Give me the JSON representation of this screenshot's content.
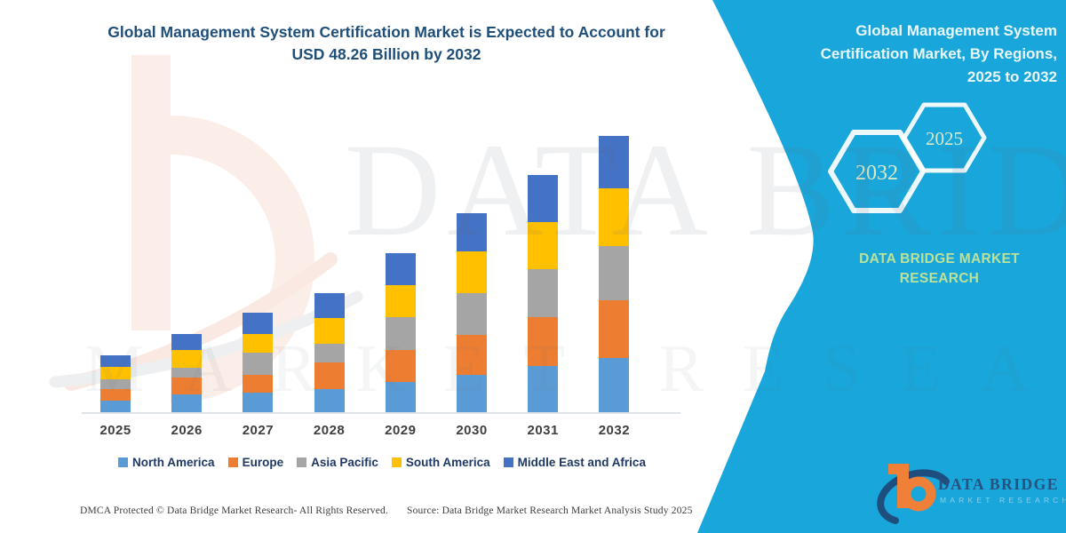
{
  "title": {
    "line1": "Global Management System Certification Market is Expected to Account for",
    "line2": "USD 48.26 Billion by 2032"
  },
  "chart_data": {
    "type": "bar",
    "stacked": true,
    "unit": "USD Billion",
    "title": "Global Management System Certification Market is Expected to Account for USD 48.26 Billion by 2032",
    "categories": [
      "2025",
      "2026",
      "2027",
      "2028",
      "2029",
      "2030",
      "2031",
      "2032"
    ],
    "series": [
      {
        "name": "North America",
        "color": "#5B9BD5",
        "values": [
          2.0,
          3.1,
          3.4,
          4.0,
          5.3,
          6.5,
          8.1,
          9.5
        ]
      },
      {
        "name": "Europe",
        "color": "#ED7D31",
        "values": [
          2.0,
          2.9,
          3.1,
          4.7,
          5.6,
          7.0,
          8.5,
          10.1
        ]
      },
      {
        "name": "Asia Pacific",
        "color": "#A5A5A5",
        "values": [
          1.7,
          1.7,
          3.9,
          3.3,
          5.7,
          7.3,
          8.4,
          9.5
        ]
      },
      {
        "name": "South America",
        "color": "#FFC000",
        "values": [
          2.3,
          3.1,
          3.3,
          4.5,
          5.6,
          7.3,
          8.2,
          10.1
        ]
      },
      {
        "name": "Middle East and Africa",
        "color": "#4472C4",
        "values": [
          1.9,
          2.8,
          3.7,
          4.3,
          5.6,
          6.7,
          8.2,
          9.1
        ]
      }
    ],
    "totals_estimated": [
      9.9,
      13.6,
      17.4,
      20.8,
      27.8,
      34.8,
      41.4,
      48.26
    ],
    "xlabel": "",
    "ylabel": "",
    "ylim": [
      0,
      50
    ],
    "grid": false,
    "y_axis_shown": false,
    "legend_position": "bottom"
  },
  "side_panel": {
    "background": "#18A6DB",
    "heading_lines": [
      "Global Management System",
      "Certification Market, By Regions,",
      "2025 to 2032"
    ],
    "hexagons": [
      {
        "label": "2032"
      },
      {
        "label": "2025"
      }
    ],
    "brand_lines": [
      "DATA BRIDGE MARKET",
      "RESEARCH"
    ]
  },
  "watermark": {
    "line1": "DATA BRIDGE",
    "line2": "MARKET RESEARCH"
  },
  "footer": {
    "left": "DMCA Protected © Data Bridge Market Research-  All Rights Reserved.",
    "source": "Source: Data Bridge Market Research  Market Analysis Study 2025"
  },
  "corner_logo": {
    "name": "DATA BRIDGE",
    "subname": "MARKET RESEARCH"
  },
  "colors": {
    "accent_cyan": "#18A6DB",
    "title_blue": "#1F4E79",
    "legend_text": "#1F3864",
    "axis_label_text": "#3F3F3F",
    "hexagon_text": "#DCE9C8",
    "brand_green": "#BCE29A",
    "logo_orange": "#F08038",
    "logo_navy": "#1D4E7E"
  }
}
